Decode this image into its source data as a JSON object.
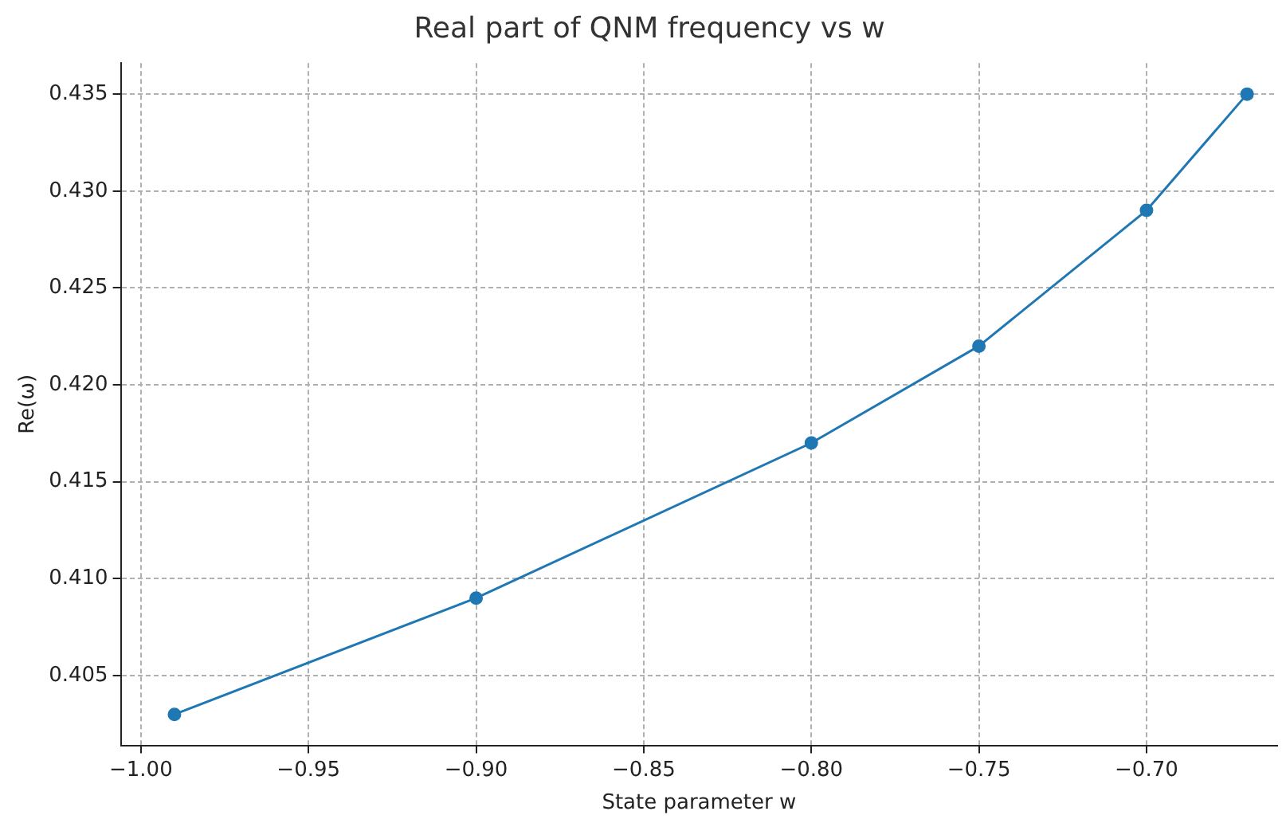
{
  "chart_data": {
    "type": "line",
    "title": "Real part of QNM frequency vs w",
    "xlabel": "State parameter w",
    "ylabel": "Re(ω)",
    "x": [
      -0.99,
      -0.9,
      -0.8,
      -0.75,
      -0.7,
      -0.67
    ],
    "series": [
      {
        "color": "#1f77b4",
        "values": [
          0.403,
          0.409,
          0.417,
          0.422,
          0.429,
          0.435
        ]
      }
    ],
    "xlim": [
      -1.006,
      -0.661
    ],
    "xticks": [
      {
        "value": -1,
        "label": "−1.00"
      },
      {
        "value": -0.95,
        "label": "−0.95"
      },
      {
        "value": -0.9,
        "label": "−0.90"
      },
      {
        "value": -0.85,
        "label": "−0.85"
      },
      {
        "value": -0.8,
        "label": "−0.80"
      },
      {
        "value": -0.75,
        "label": "−0.75"
      },
      {
        "value": -0.7,
        "label": "−0.70"
      }
    ],
    "ylim": [
      0.4014,
      0.4366
    ],
    "yticks": [
      0.405,
      {
        "value": 0.41,
        "label": "0.410"
      },
      0.415,
      {
        "value": 0.42,
        "label": "0.420"
      },
      0.425,
      {
        "value": 0.43,
        "label": "0.430"
      },
      0.435
    ],
    "grid": true,
    "marker": "circle",
    "line_style": "solid",
    "legend": false
  }
}
